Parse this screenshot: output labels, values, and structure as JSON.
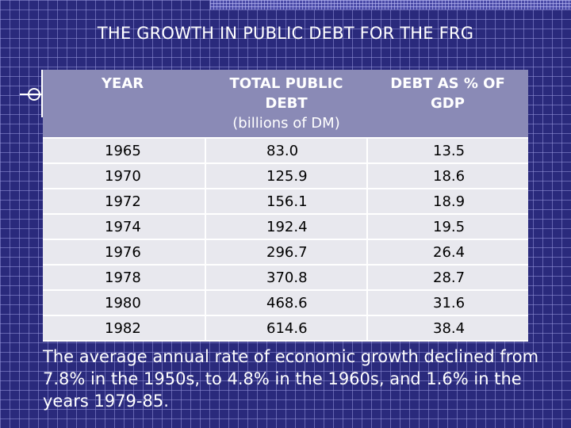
{
  "slide": {
    "title": "THE GROWTH IN PUBLIC DEBT FOR THE FRG",
    "table": {
      "headers": {
        "year": "YEAR",
        "debt_line1": "TOTAL PUBLIC",
        "debt_line2": "DEBT",
        "debt_line3": "(billions of DM)",
        "pct_line1": "DEBT AS % OF",
        "pct_line2": "GDP"
      },
      "rows": [
        {
          "year": "1965",
          "debt": "83.0",
          "pct": "13.5"
        },
        {
          "year": "1970",
          "debt": "125.9",
          "pct": "18.6"
        },
        {
          "year": "1972",
          "debt": "156.1",
          "pct": "18.9"
        },
        {
          "year": "1974",
          "debt": "192.4",
          "pct": "19.5"
        },
        {
          "year": "1976",
          "debt": "296.7",
          "pct": "26.4"
        },
        {
          "year": "1978",
          "debt": "370.8",
          "pct": "28.7"
        },
        {
          "year": "1980",
          "debt": "468.6",
          "pct": "31.6"
        },
        {
          "year": "1982",
          "debt": "614.6",
          "pct": "38.4"
        }
      ]
    },
    "footnote": "The average annual rate of economic growth declined from 7.8% in the 1950s, to 4.8% in the 1960s, and 1.6% in the years 1979-85."
  },
  "colors": {
    "background": "#2a2a7c",
    "header_fill": "#8a8ab6",
    "cell_fill": "#e8e8ee"
  }
}
